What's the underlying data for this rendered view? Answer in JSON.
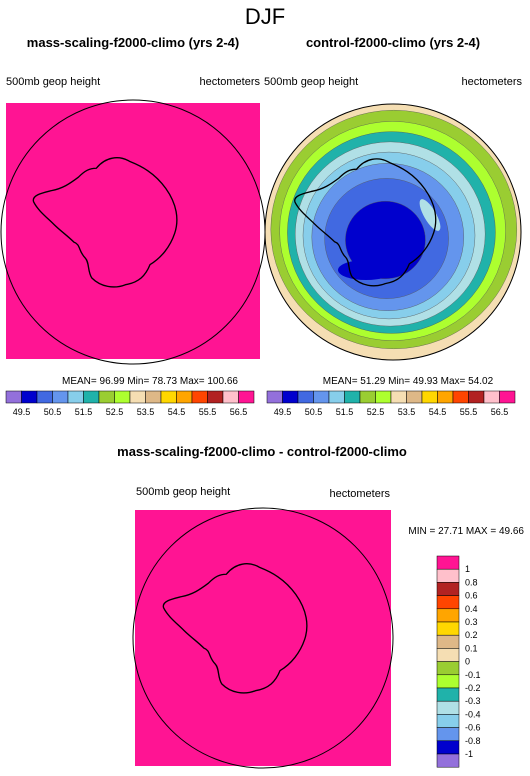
{
  "figure": {
    "title": "DJF",
    "panels": [
      {
        "title": "mass-scaling-f2000-climo (yrs 2-4)",
        "left_label": "500mb geop height",
        "right_label": "hectometers",
        "stats": "MEAN= 96.99  Min= 78.73  Max= 100.66",
        "fill": "#ff1493"
      },
      {
        "title": "control-f2000-climo (yrs 2-4)",
        "left_label": "500mb geop height",
        "right_label": "hectometers",
        "stats": "MEAN= 51.29  Min= 49.93  Max= 54.02"
      }
    ],
    "colorbar_ticks": [
      "49.5",
      "50.5",
      "51.5",
      "52.5",
      "53.5",
      "54.5",
      "55.5",
      "56.5"
    ],
    "colorbar_colors": [
      "#9370db",
      "#0000cd",
      "#4169e1",
      "#6495ed",
      "#87ceeb",
      "#20b2aa",
      "#9acd32",
      "#adff2f",
      "#f5deb3",
      "#deb887",
      "#ffd700",
      "#ffa500",
      "#ff4500",
      "#b22222",
      "#ffc0cb",
      "#ff1493"
    ],
    "diff": {
      "title": "mass-scaling-f2000-climo - control-f2000-climo",
      "left_label": "500mb geop height",
      "right_label": "hectometers",
      "minmax": "MIN =  27.71 MAX =  49.66",
      "fill": "#ff1493",
      "legend": [
        {
          "label": "1",
          "color": "#ff1493"
        },
        {
          "label": "0.8",
          "color": "#ffc0cb"
        },
        {
          "label": "0.6",
          "color": "#b22222"
        },
        {
          "label": "0.4",
          "color": "#ff4500"
        },
        {
          "label": "0.3",
          "color": "#ffa500"
        },
        {
          "label": "0.2",
          "color": "#ffd700"
        },
        {
          "label": "0.1",
          "color": "#deb887"
        },
        {
          "label": "0",
          "color": "#f5deb3"
        },
        {
          "label": "-0.1",
          "color": "#9acd32"
        },
        {
          "label": "-0.2",
          "color": "#adff2f"
        },
        {
          "label": "-0.3",
          "color": "#20b2aa"
        },
        {
          "label": "-0.4",
          "color": "#b0e0e6"
        },
        {
          "label": "-0.6",
          "color": "#87ceeb"
        },
        {
          "label": "-0.8",
          "color": "#6495ed"
        },
        {
          "label": "-1",
          "color": "#0000cd"
        },
        {
          "label": "",
          "color": "#9370db"
        }
      ]
    },
    "control_contours": [
      "#f5deb3",
      "#9acd32",
      "#adff2f",
      "#20b2aa",
      "#b0e0e6",
      "#87ceeb",
      "#6495ed",
      "#4169e1",
      "#0000cd"
    ]
  }
}
